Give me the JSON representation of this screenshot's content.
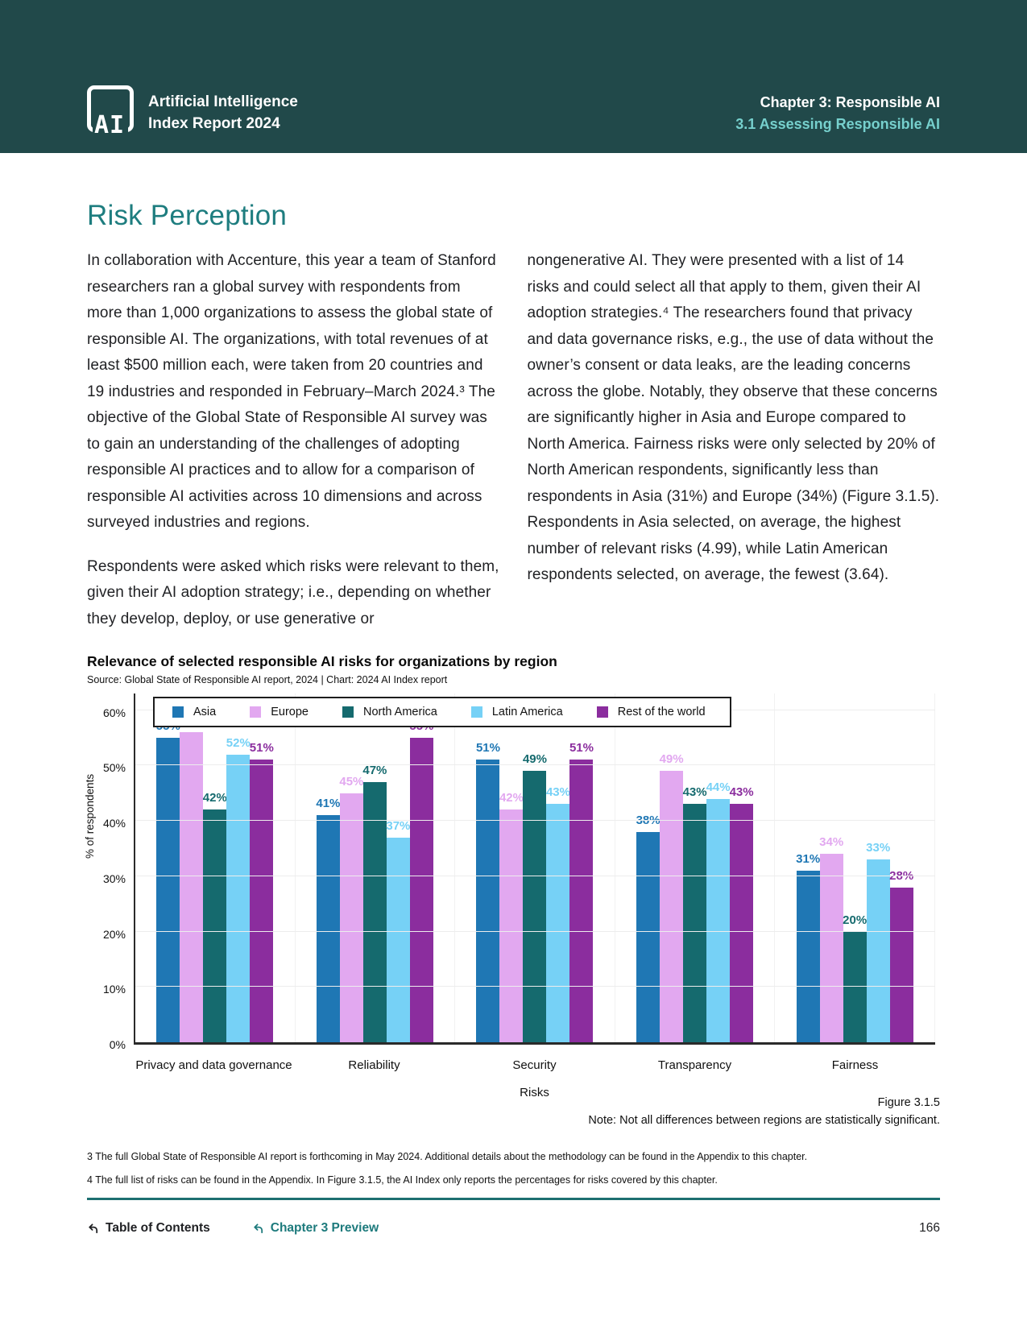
{
  "header": {
    "logo_ai": "AI",
    "brand_line1": "Artificial Intelligence",
    "brand_line2": "Index Report 2024",
    "chapter": "Chapter 3: Responsible AI",
    "section": "3.1 Assessing Responsible AI"
  },
  "page": {
    "title": "Risk Perception",
    "left_column": [
      "In collaboration with Accenture, this year a team of Stanford researchers ran a global survey with respondents from more than 1,000 organizations to assess the global state of responsible AI. The organizations, with total revenues of at least $500 million each, were taken from 20 countries and 19 industries and responded in February–March 2024.³ The objective of the Global State of Responsible AI survey was to gain an understanding of the challenges of adopting responsible AI practices and to allow for a comparison of responsible AI activities across 10 dimensions and across surveyed industries and regions.",
      "Respondents were asked which risks were relevant to them, given their AI adoption strategy; i.e., depending on whether they develop, deploy, or use generative or"
    ],
    "right_column": [
      "nongenerative AI. They were presented with a list of 14 risks and could select all that apply to them, given their AI adoption strategies.⁴ The researchers found that privacy and data governance risks, e.g., the use of data without the owner’s consent or data leaks, are the leading concerns across the globe. Notably, they observe that these concerns are significantly higher in Asia and Europe compared to North America. Fairness risks were only selected by 20% of North American respondents, significantly less than respondents in Asia (31%) and Europe (34%) (Figure 3.1.5). Respondents in Asia selected, on average, the highest number of relevant risks (4.99), while Latin American respondents selected, on average, the fewest (3.64)."
    ]
  },
  "chart": {
    "title": "Relevance of selected responsible AI risks for organizations by region",
    "source": "Source: Global State of Responsible AI report, 2024 | Chart: 2024 AI Index report",
    "ylabel": "% of respondents",
    "xlabel": "Risks",
    "figure_label": "Figure 3.1.5",
    "note": "Note: Not all differences between regions are statistically significant."
  },
  "chart_data": {
    "type": "bar",
    "categories": [
      "Privacy and data governance",
      "Reliability",
      "Security",
      "Transparency",
      "Fairness"
    ],
    "series": [
      {
        "name": "Asia",
        "color": "#1f77b4",
        "values": [
          55,
          41,
          51,
          38,
          31
        ]
      },
      {
        "name": "Europe",
        "color": "#e2a8f0",
        "values": [
          56,
          45,
          42,
          49,
          34
        ]
      },
      {
        "name": "North America",
        "color": "#156a6e",
        "values": [
          42,
          47,
          49,
          43,
          20
        ]
      },
      {
        "name": "Latin America",
        "color": "#76d1f6",
        "values": [
          52,
          37,
          43,
          44,
          33
        ]
      },
      {
        "name": "Rest of the world",
        "color": "#8b2d9e",
        "values": [
          51,
          55,
          51,
          43,
          28
        ]
      }
    ],
    "title": "Relevance of selected responsible AI risks for organizations by region",
    "xlabel": "Risks",
    "ylabel": "% of respondents",
    "ylim": [
      0,
      60
    ],
    "yticks": [
      0,
      10,
      20,
      30,
      40,
      50,
      60
    ],
    "value_suffix": "%",
    "grid": true,
    "legend_position": "top-left-inside"
  },
  "footnotes": [
    "3 The full Global State of Responsible AI report is forthcoming in May 2024. Additional details about the methodology can be found in the Appendix to this chapter.",
    "4 The full list of risks can be found in the Appendix. In Figure 3.1.5, the AI Index only reports the percentages for risks covered by this chapter."
  ],
  "footer": {
    "toc_label": "Table of Contents",
    "preview_label": "Chapter 3 Preview",
    "page_number": "166"
  },
  "colors": {
    "header_bg": "#21494a",
    "header_section_text": "#76d0cd",
    "page_title": "#1e7d7f",
    "rule": "#1d6f70",
    "preview_link": "#1d7a7c"
  }
}
